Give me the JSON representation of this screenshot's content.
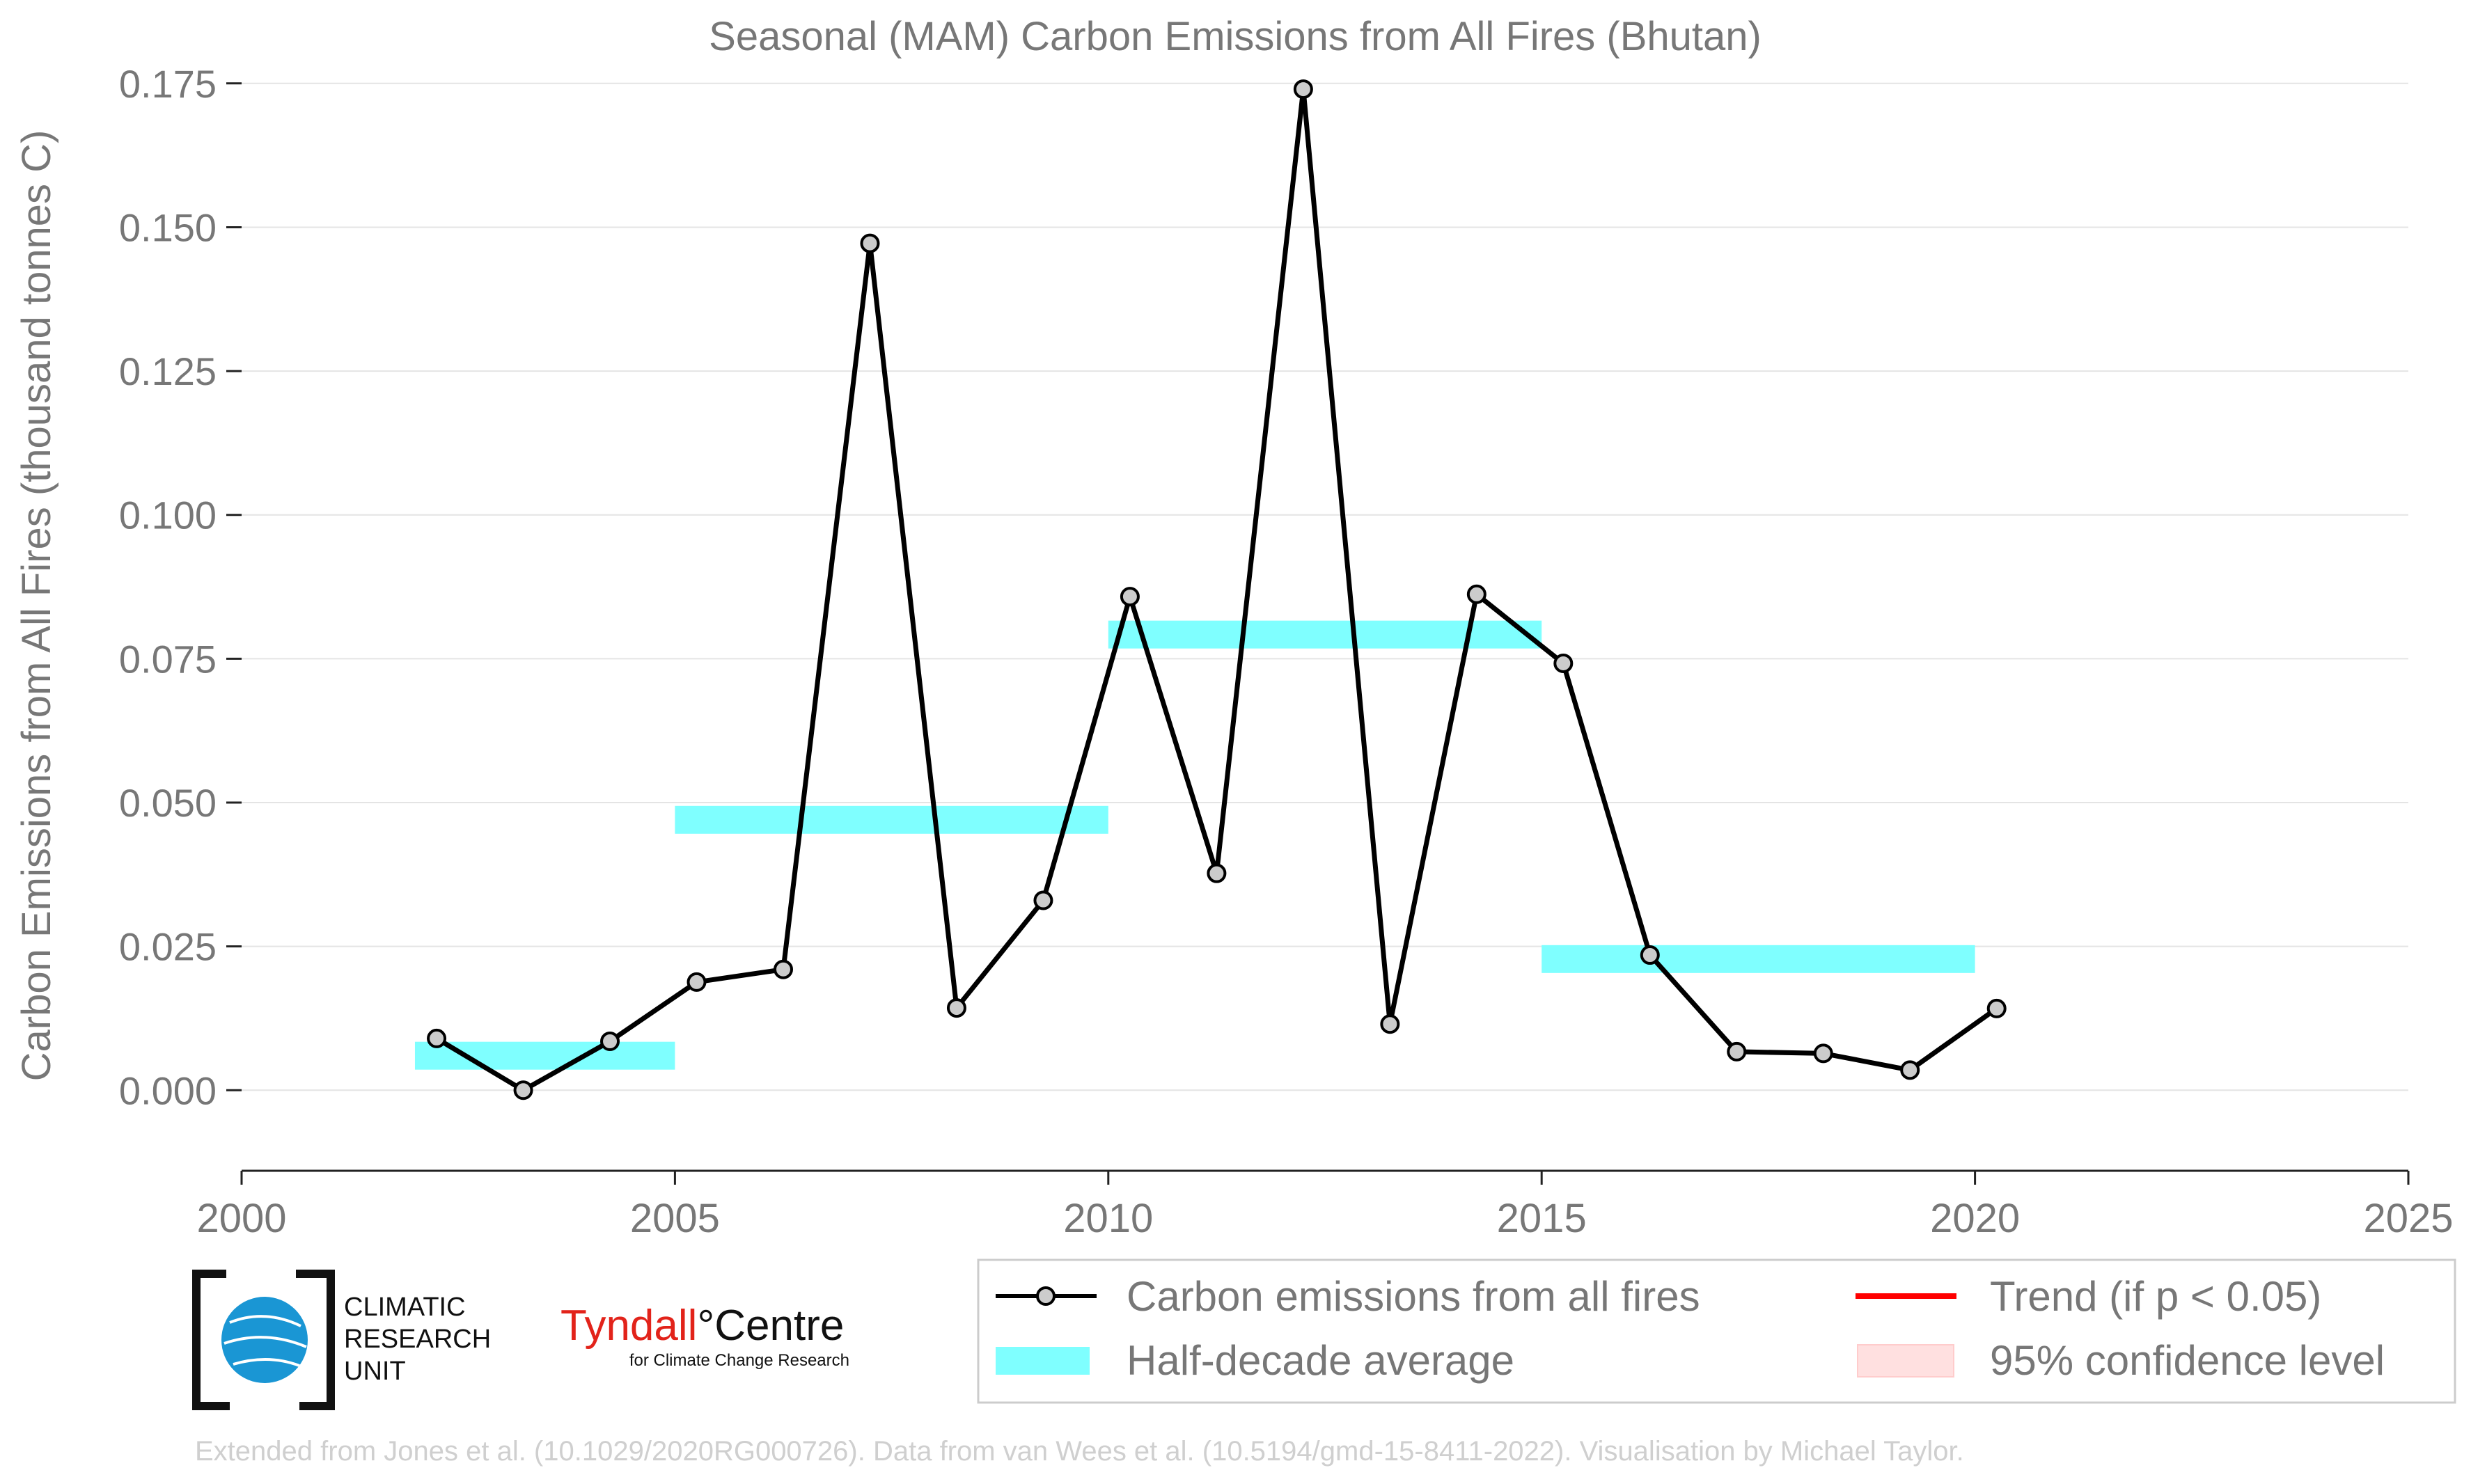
{
  "chart_data": {
    "type": "line",
    "title": "Seasonal (MAM) Carbon Emissions from All Fires (Bhutan)",
    "ylabel": "Carbon Emissions from All Fires (thousand tonnes C)",
    "xlabel": "",
    "xlim": [
      2000,
      2025
    ],
    "ylim": [
      -0.014,
      0.178
    ],
    "x_ticks": [
      2000,
      2005,
      2010,
      2015,
      2020,
      2025
    ],
    "y_ticks": [
      0.0,
      0.025,
      0.05,
      0.075,
      0.1,
      0.125,
      0.15,
      0.175
    ],
    "y_tick_labels": [
      "0.000",
      "0.025",
      "0.050",
      "0.075",
      "0.100",
      "0.125",
      "0.150",
      "0.175"
    ],
    "grid": "horizontal",
    "legend_position": "bottom-right",
    "series": [
      {
        "name": "Carbon emissions from all fires",
        "color": "#000000",
        "marker_fill": "#cccccc",
        "x": [
          2002.25,
          2003.25,
          2004.25,
          2005.25,
          2006.25,
          2007.25,
          2008.25,
          2009.25,
          2010.25,
          2011.25,
          2012.25,
          2013.25,
          2014.25,
          2015.25,
          2016.25,
          2017.25,
          2018.25,
          2019.25,
          2020.25
        ],
        "y": [
          0.009,
          0.0,
          0.0085,
          0.0188,
          0.021,
          0.1472,
          0.0143,
          0.033,
          0.0858,
          0.0377,
          0.174,
          0.0115,
          0.0862,
          0.0742,
          0.0235,
          0.0067,
          0.0064,
          0.0035,
          0.0142
        ]
      }
    ],
    "half_decade_average": {
      "name": "Half-decade average",
      "color": "#7fffff",
      "segments": [
        {
          "x0": 2002.0,
          "x1": 2005.0,
          "y": 0.006
        },
        {
          "x0": 2005.0,
          "x1": 2010.0,
          "y": 0.047
        },
        {
          "x0": 2010.0,
          "x1": 2015.0,
          "y": 0.0792
        },
        {
          "x0": 2015.0,
          "x1": 2020.0,
          "y": 0.0228
        }
      ]
    },
    "legend": [
      {
        "label": "Carbon emissions from all fires",
        "kind": "line-marker",
        "color": "#000000"
      },
      {
        "label": "Half-decade average",
        "kind": "band",
        "color": "#7fffff"
      },
      {
        "label": "Trend (if p < 0.05)",
        "kind": "line",
        "color": "#ff0000"
      },
      {
        "label": "95% confidence level",
        "kind": "patch",
        "color": "#ffe0e0"
      }
    ]
  },
  "logos": {
    "cru_lines": [
      "CLIMATIC",
      "RESEARCH",
      "UNIT"
    ],
    "tyndall_part1": "Tyndall",
    "tyndall_part2": "°Centre",
    "tyndall_sub": "for Climate Change Research"
  },
  "footer": "Extended from Jones et al. (10.1029/2020RG000726). Data from van Wees et al. (10.5194/gmd-15-8411-2022). Visualisation by Michael Taylor."
}
